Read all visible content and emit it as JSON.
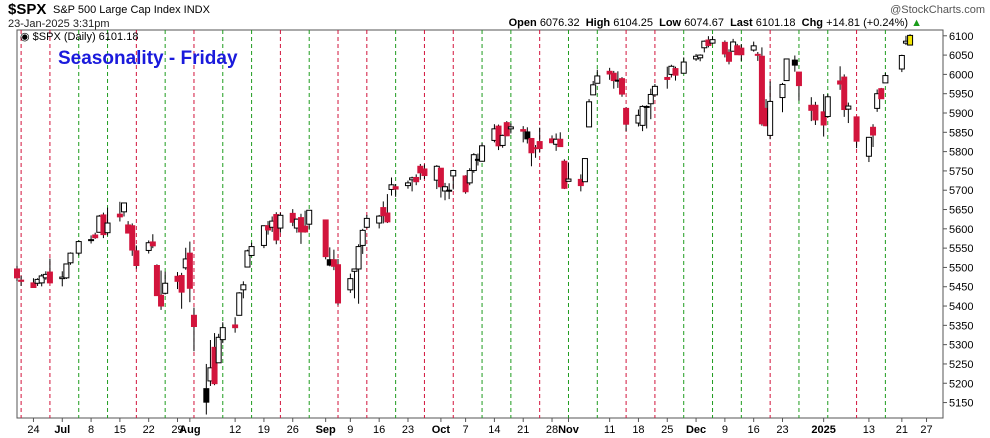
{
  "header": {
    "symbol": "$SPX",
    "description": "S&P 500 Large Cap Index  INDX",
    "datetime": "23-Jan-2025 3:31pm",
    "open_label": "Open",
    "open": "6076.32",
    "high_label": "High",
    "high": "6104.25",
    "low_label": "Low",
    "low": "6074.67",
    "last_label": "Last",
    "last": "6101.18",
    "chg_label": "Chg",
    "chg": "+14.81 (+0.24%)",
    "watermark": "@StockCharts.com"
  },
  "panel": {
    "legend": "$SPX (Daily) 6101.18",
    "title": "Seasonality - Friday"
  },
  "colors": {
    "up_fill": "#ffffff",
    "down_fill": "#d2143c",
    "black_candle": "#000000",
    "title": "#1a1adc",
    "vline_red": "#d2143c",
    "vline_green": "#1f9c1f",
    "last_marker": "#f2e600"
  },
  "chart_data": {
    "type": "candlestick",
    "title": "Seasonality - Friday",
    "ylim": [
      5110,
      6115
    ],
    "y_ticks": [
      5150,
      5200,
      5250,
      5300,
      5350,
      5400,
      5450,
      5500,
      5550,
      5600,
      5650,
      5700,
      5750,
      5800,
      5850,
      5900,
      5950,
      6000,
      6050,
      6100
    ],
    "x_tick_labels": [
      "24",
      "Jul",
      "8",
      "15",
      "22",
      "29",
      "Aug",
      "12",
      "19",
      "26",
      "Sep",
      "9",
      "16",
      "23",
      "Oct",
      "7",
      "14",
      "21",
      "28",
      "Nov",
      "11",
      "18",
      "25",
      "Dec",
      "9",
      "16",
      "23",
      "2025",
      "13",
      "21",
      "27"
    ],
    "x_tick_dates": [
      "2024-06-24",
      "2024-07-01",
      "2024-07-08",
      "2024-07-15",
      "2024-07-22",
      "2024-07-29",
      "2024-08-01",
      "2024-08-12",
      "2024-08-19",
      "2024-08-26",
      "2024-09-03",
      "2024-09-09",
      "2024-09-16",
      "2024-09-23",
      "2024-10-01",
      "2024-10-07",
      "2024-10-14",
      "2024-10-21",
      "2024-10-28",
      "2024-11-01",
      "2024-11-11",
      "2024-11-18",
      "2024-11-25",
      "2024-12-02",
      "2024-12-09",
      "2024-12-16",
      "2024-12-23",
      "2025-01-02",
      "2025-01-13",
      "2025-01-21",
      "2025-01-27"
    ],
    "x_range": [
      "2024-06-20",
      "2025-01-31"
    ],
    "vertical_lines": {
      "red_at_fridays": [
        "2024-06-21",
        "2024-06-28",
        "2024-07-19",
        "2024-08-02",
        "2024-08-23",
        "2024-09-06",
        "2024-09-13",
        "2024-09-27",
        "2024-10-04",
        "2024-10-25",
        "2024-11-15",
        "2024-11-22",
        "2024-12-20",
        "2025-01-10"
      ],
      "green_at_fridays": [
        "2024-07-05",
        "2024-07-12",
        "2024-07-26",
        "2024-08-09",
        "2024-08-16",
        "2024-08-30",
        "2024-09-20",
        "2024-10-11",
        "2024-10-18",
        "2024-11-01",
        "2024-11-08",
        "2024-11-29",
        "2024-12-06",
        "2024-12-13",
        "2024-12-27",
        "2025-01-03",
        "2025-01-17"
      ]
    },
    "ohlc_columns": [
      "date",
      "open",
      "high",
      "low",
      "close"
    ],
    "series": [
      [
        "2024-06-20",
        5496,
        5504,
        5465,
        5473
      ],
      [
        "2024-06-21",
        5467,
        5478,
        5452,
        5464
      ],
      [
        "2024-06-24",
        5460,
        5472,
        5448,
        5448
      ],
      [
        "2024-06-25",
        5459,
        5472,
        5452,
        5469
      ],
      [
        "2024-06-26",
        5460,
        5483,
        5451,
        5478
      ],
      [
        "2024-06-27",
        5473,
        5490,
        5468,
        5482
      ],
      [
        "2024-06-28",
        5488,
        5523,
        5460,
        5460
      ],
      [
        "2024-07-01",
        5471,
        5490,
        5451,
        5475
      ],
      [
        "2024-07-02",
        5473,
        5510,
        5470,
        5509
      ],
      [
        "2024-07-03",
        5512,
        5539,
        5507,
        5537
      ],
      [
        "2024-07-05",
        5537,
        5570,
        5531,
        5567
      ],
      [
        "2024-07-08",
        5572,
        5583,
        5562,
        5572
      ],
      [
        "2024-07-09",
        5584,
        5590,
        5574,
        5577
      ],
      [
        "2024-07-10",
        5591,
        5636,
        5590,
        5633
      ],
      [
        "2024-07-11",
        5636,
        5642,
        5576,
        5585
      ],
      [
        "2024-07-12",
        5590,
        5655,
        5583,
        5615
      ],
      [
        "2024-07-15",
        5638,
        5670,
        5619,
        5631
      ],
      [
        "2024-07-16",
        5644,
        5667,
        5632,
        5667
      ],
      [
        "2024-07-17",
        5610,
        5620,
        5588,
        5589
      ],
      [
        "2024-07-18",
        5608,
        5614,
        5530,
        5545
      ],
      [
        "2024-07-19",
        5543,
        5557,
        5497,
        5505
      ],
      [
        "2024-07-22",
        5544,
        5570,
        5536,
        5564
      ],
      [
        "2024-07-23",
        5566,
        5586,
        5550,
        5556
      ],
      [
        "2024-07-24",
        5505,
        5508,
        5426,
        5427
      ],
      [
        "2024-07-25",
        5428,
        5492,
        5390,
        5400
      ],
      [
        "2024-07-26",
        5433,
        5489,
        5430,
        5459
      ],
      [
        "2024-07-29",
        5477,
        5488,
        5444,
        5464
      ],
      [
        "2024-07-30",
        5479,
        5486,
        5393,
        5436
      ],
      [
        "2024-07-31",
        5499,
        5551,
        5494,
        5522
      ],
      [
        "2024-08-01",
        5537,
        5567,
        5410,
        5446
      ],
      [
        "2024-08-02",
        5376,
        5396,
        5283,
        5347
      ],
      [
        "2024-08-05",
        5151,
        5250,
        5119,
        5186
      ],
      [
        "2024-08-06",
        5206,
        5312,
        5193,
        5240
      ],
      [
        "2024-08-07",
        5293,
        5330,
        5195,
        5199
      ],
      [
        "2024-08-08",
        5253,
        5328,
        5253,
        5319
      ],
      [
        "2024-08-09",
        5313,
        5358,
        5304,
        5344
      ],
      [
        "2024-08-12",
        5351,
        5371,
        5331,
        5344
      ],
      [
        "2024-08-13",
        5376,
        5436,
        5376,
        5434
      ],
      [
        "2024-08-14",
        5442,
        5464,
        5420,
        5455
      ],
      [
        "2024-08-15",
        5501,
        5546,
        5501,
        5543
      ],
      [
        "2024-08-16",
        5531,
        5564,
        5529,
        5554
      ],
      [
        "2024-08-19",
        5557,
        5608,
        5550,
        5608
      ],
      [
        "2024-08-20",
        5608,
        5620,
        5585,
        5597
      ],
      [
        "2024-08-21",
        5604,
        5632,
        5592,
        5620
      ],
      [
        "2024-08-22",
        5637,
        5643,
        5560,
        5571
      ],
      [
        "2024-08-23",
        5602,
        5642,
        5590,
        5635
      ],
      [
        "2024-08-26",
        5640,
        5651,
        5607,
        5617
      ],
      [
        "2024-08-27",
        5602,
        5627,
        5590,
        5625
      ],
      [
        "2024-08-28",
        5629,
        5639,
        5561,
        5592
      ],
      [
        "2024-08-29",
        5607,
        5647,
        5590,
        5592
      ],
      [
        "2024-08-30",
        5612,
        5648,
        5600,
        5648
      ],
      [
        "2024-09-03",
        5623,
        5624,
        5521,
        5528
      ],
      [
        "2024-09-04",
        5506,
        5552,
        5503,
        5520
      ],
      [
        "2024-09-05",
        5520,
        5546,
        5493,
        5503
      ],
      [
        "2024-09-06",
        5507,
        5522,
        5402,
        5408
      ],
      [
        "2024-09-09",
        5442,
        5484,
        5434,
        5471
      ],
      [
        "2024-09-10",
        5490,
        5497,
        5420,
        5496
      ],
      [
        "2024-09-11",
        5496,
        5560,
        5406,
        5554
      ],
      [
        "2024-09-12",
        5557,
        5600,
        5535,
        5596
      ],
      [
        "2024-09-13",
        5604,
        5636,
        5601,
        5627
      ],
      [
        "2024-09-16",
        5615,
        5636,
        5601,
        5633
      ],
      [
        "2024-09-17",
        5655,
        5671,
        5614,
        5634
      ],
      [
        "2024-09-18",
        5641,
        5690,
        5615,
        5618
      ],
      [
        "2024-09-19",
        5702,
        5733,
        5686,
        5714
      ],
      [
        "2024-09-20",
        5709,
        5716,
        5683,
        5703
      ],
      [
        "2024-09-23",
        5712,
        5725,
        5704,
        5719
      ],
      [
        "2024-09-24",
        5727,
        5735,
        5697,
        5732
      ],
      [
        "2024-09-25",
        5733,
        5741,
        5713,
        5722
      ],
      [
        "2024-09-26",
        5762,
        5768,
        5727,
        5745
      ],
      [
        "2024-09-27",
        5755,
        5767,
        5729,
        5738
      ],
      [
        "2024-09-30",
        5726,
        5765,
        5703,
        5762
      ],
      [
        "2024-10-01",
        5757,
        5757,
        5681,
        5709
      ],
      [
        "2024-10-02",
        5698,
        5719,
        5674,
        5709
      ],
      [
        "2024-10-03",
        5698,
        5718,
        5677,
        5700
      ],
      [
        "2024-10-04",
        5737,
        5753,
        5702,
        5751
      ],
      [
        "2024-10-07",
        5737,
        5739,
        5691,
        5696
      ],
      [
        "2024-10-08",
        5719,
        5757,
        5713,
        5751
      ],
      [
        "2024-10-09",
        5751,
        5796,
        5745,
        5792
      ],
      [
        "2024-10-10",
        5778,
        5795,
        5764,
        5780
      ],
      [
        "2024-10-11",
        5775,
        5822,
        5774,
        5815
      ],
      [
        "2024-10-14",
        5829,
        5871,
        5824,
        5859
      ],
      [
        "2024-10-15",
        5866,
        5870,
        5804,
        5815
      ],
      [
        "2024-10-16",
        5816,
        5844,
        5810,
        5842
      ],
      [
        "2024-10-17",
        5875,
        5879,
        5840,
        5841
      ],
      [
        "2024-10-18",
        5859,
        5873,
        5847,
        5864
      ],
      [
        "2024-10-21",
        5857,
        5866,
        5824,
        5853
      ],
      [
        "2024-10-22",
        5833,
        5863,
        5821,
        5851
      ],
      [
        "2024-10-23",
        5834,
        5834,
        5762,
        5797
      ],
      [
        "2024-10-24",
        5810,
        5817,
        5784,
        5809
      ],
      [
        "2024-10-25",
        5826,
        5862,
        5799,
        5808
      ],
      [
        "2024-10-28",
        5833,
        5842,
        5822,
        5823
      ],
      [
        "2024-10-29",
        5819,
        5847,
        5802,
        5832
      ],
      [
        "2024-10-30",
        5832,
        5850,
        5812,
        5813
      ],
      [
        "2024-10-31",
        5775,
        5780,
        5703,
        5705
      ],
      [
        "2024-11-01",
        5723,
        5772,
        5723,
        5729
      ],
      [
        "2024-11-04",
        5728,
        5741,
        5697,
        5712
      ],
      [
        "2024-11-05",
        5722,
        5783,
        5722,
        5782
      ],
      [
        "2024-11-06",
        5864,
        5936,
        5864,
        5929
      ],
      [
        "2024-11-07",
        5947,
        5983,
        5947,
        5973
      ],
      [
        "2024-11-08",
        5977,
        6012,
        5977,
        5996
      ],
      [
        "2024-11-11",
        6008,
        6017,
        5986,
        6001
      ],
      [
        "2024-11-12",
        6003,
        6009,
        5963,
        5984
      ],
      [
        "2024-11-13",
        5985,
        6008,
        5965,
        5985
      ],
      [
        "2024-11-14",
        5989,
        5993,
        5942,
        5949
      ],
      [
        "2024-11-15",
        5912,
        5915,
        5853,
        5871
      ],
      [
        "2024-11-18",
        5874,
        5909,
        5865,
        5894
      ],
      [
        "2024-11-19",
        5868,
        5920,
        5853,
        5917
      ],
      [
        "2024-11-20",
        5917,
        5920,
        5860,
        5917
      ],
      [
        "2024-11-21",
        5924,
        5963,
        5884,
        5948
      ],
      [
        "2024-11-22",
        5947,
        5975,
        5942,
        5969
      ],
      [
        "2024-11-25",
        5992,
        6020,
        5963,
        5987
      ],
      [
        "2024-11-26",
        6000,
        6025,
        5992,
        6021
      ],
      [
        "2024-11-27",
        6015,
        6020,
        5984,
        5998
      ],
      [
        "2024-11-29",
        6003,
        6044,
        6003,
        6032
      ],
      [
        "2024-12-02",
        6040,
        6053,
        6035,
        6047
      ],
      [
        "2024-12-03",
        6043,
        6052,
        6034,
        6050
      ],
      [
        "2024-12-04",
        6069,
        6088,
        6057,
        6086
      ],
      [
        "2024-12-05",
        6089,
        6099,
        6070,
        6075
      ],
      [
        "2024-12-06",
        6081,
        6099,
        6079,
        6090
      ],
      [
        "2024-12-09",
        6083,
        6088,
        6044,
        6053
      ],
      [
        "2024-12-10",
        6057,
        6065,
        6026,
        6034
      ],
      [
        "2024-12-11",
        6060,
        6092,
        6060,
        6084
      ],
      [
        "2024-12-12",
        6074,
        6079,
        6051,
        6051
      ],
      [
        "2024-12-13",
        6068,
        6078,
        6035,
        6051
      ],
      [
        "2024-12-16",
        6063,
        6085,
        6059,
        6074
      ],
      [
        "2024-12-17",
        6052,
        6058,
        6035,
        6050
      ],
      [
        "2024-12-18",
        6047,
        6070,
        5867,
        5872
      ],
      [
        "2024-12-19",
        5912,
        5936,
        5866,
        5867
      ],
      [
        "2024-12-20",
        5842,
        5982,
        5832,
        5930
      ],
      [
        "2024-12-23",
        5940,
        5978,
        5902,
        5974
      ],
      [
        "2024-12-24",
        5984,
        6040,
        5983,
        6040
      ],
      [
        "2024-12-26",
        6024,
        6049,
        6007,
        6037
      ],
      [
        "2024-12-27",
        6006,
        6006,
        5932,
        5971
      ],
      [
        "2024-12-30",
        5920,
        5941,
        5879,
        5907
      ],
      [
        "2024-12-31",
        5920,
        5929,
        5869,
        5882
      ],
      [
        "2025-01-02",
        5903,
        5949,
        5839,
        5869
      ],
      [
        "2025-01-03",
        5891,
        5949,
        5888,
        5942
      ],
      [
        "2025-01-06",
        5983,
        6021,
        5960,
        5975
      ],
      [
        "2025-01-07",
        5993,
        6000,
        5890,
        5909
      ],
      [
        "2025-01-08",
        5910,
        5927,
        5874,
        5918
      ],
      [
        "2025-01-10",
        5890,
        5891,
        5809,
        5827
      ],
      [
        "2025-01-13",
        5788,
        5838,
        5773,
        5837
      ],
      [
        "2025-01-14",
        5863,
        5871,
        5812,
        5843
      ],
      [
        "2025-01-15",
        5912,
        5961,
        5903,
        5950
      ],
      [
        "2025-01-16",
        5963,
        5965,
        5937,
        5937
      ],
      [
        "2025-01-17",
        5978,
        6004,
        5978,
        5997
      ],
      [
        "2025-01-21",
        6014,
        6051,
        6006,
        6049
      ],
      [
        "2025-01-22",
        6081,
        6100,
        6076,
        6086
      ],
      [
        "2025-01-23",
        6076,
        6104,
        6075,
        6101
      ]
    ]
  }
}
